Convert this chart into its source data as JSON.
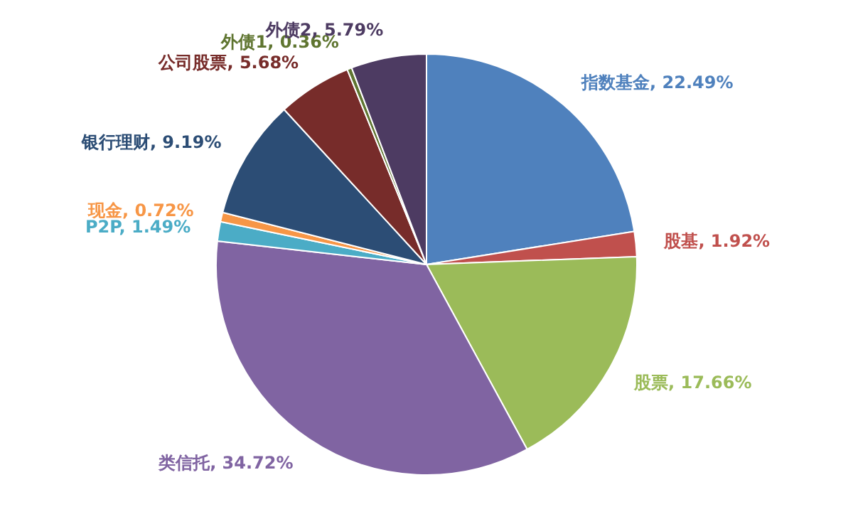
{
  "chart_data": {
    "type": "pie",
    "categories": [
      "指数基金",
      "股基",
      "股票",
      "类信托",
      "P2P",
      "现金",
      "银行理财",
      "公司股票",
      "外债1",
      "外债2"
    ],
    "values": [
      22.49,
      1.92,
      17.66,
      34.72,
      1.49,
      0.72,
      9.19,
      5.68,
      0.36,
      5.79
    ],
    "value_labels": [
      "22.49%",
      "1.92%",
      "17.66%",
      "34.72%",
      "1.49%",
      "0.72%",
      "9.19%",
      "5.68%",
      "0.36%",
      "5.79%"
    ],
    "colors": [
      "#4f81bd",
      "#c0504d",
      "#9bbb59",
      "#8064a2",
      "#4bacc6",
      "#f79646",
      "#2c4d75",
      "#772c2a",
      "#5f7530",
      "#4d3b62"
    ]
  }
}
